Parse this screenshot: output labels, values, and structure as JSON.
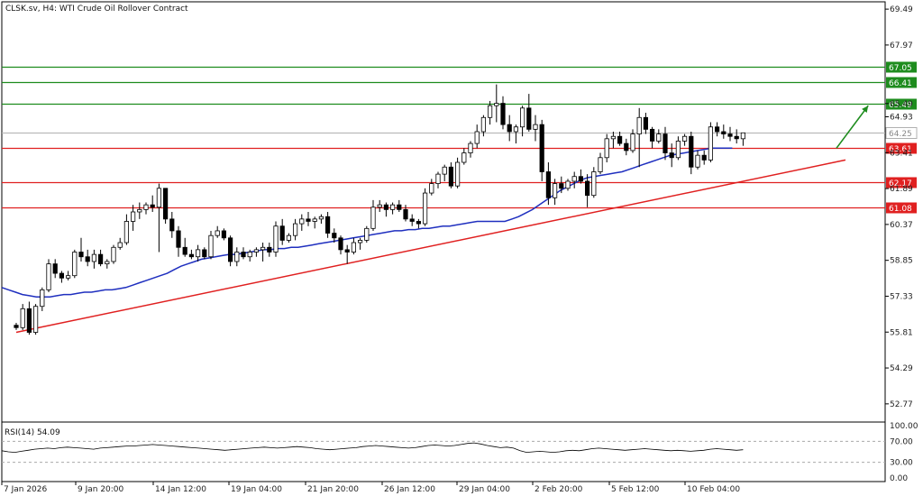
{
  "header": {
    "symbol_line": "CLSK.sv, H4:  WTI Crude Oil Rollover Contract"
  },
  "indicator": {
    "label": "RSI(14) 54.09",
    "levels": [
      "100.00",
      "70.00",
      "30.00",
      "0.00"
    ]
  },
  "colors": {
    "candle_up": "#ffffff",
    "candle_down": "#000000",
    "ma_line": "#1f2fbf",
    "support_lines": "#e02020",
    "resistance_lines": "#1e8c1e",
    "rsi_line": "#000000",
    "arrow": "#1e8c1e",
    "price_marker": "#b0b0b0"
  },
  "chart_data": {
    "type": "candlestick",
    "price_ticks": [
      "69.49",
      "67.97",
      "65.49",
      "64.93",
      "63.41",
      "61.89",
      "60.37",
      "58.85",
      "57.33",
      "55.81",
      "54.29",
      "52.77"
    ],
    "time_ticks": [
      "7 Jan 2026",
      "9 Jan 20:00",
      "14 Jan 12:00",
      "19 Jan 04:00",
      "21 Jan 20:00",
      "26 Jan 12:00",
      "29 Jan 04:00",
      "2 Feb 20:00",
      "5 Feb 12:00",
      "10 Feb 04:00"
    ],
    "ylim": [
      52.0,
      69.8
    ],
    "current_price": "64.25",
    "horizontal_levels": [
      {
        "label": "67.05",
        "value": 67.05,
        "kind": "resistance"
      },
      {
        "label": "66.41",
        "value": 66.41,
        "kind": "resistance"
      },
      {
        "label": "65.49",
        "value": 65.49,
        "kind": "resistance"
      },
      {
        "label": "63.61",
        "value": 63.61,
        "kind": "support"
      },
      {
        "label": "62.17",
        "value": 62.17,
        "kind": "support"
      },
      {
        "label": "61.08",
        "value": 61.08,
        "kind": "support"
      }
    ],
    "trendline": {
      "from": [
        0,
        55.8
      ],
      "to": [
        130,
        63.1
      ]
    },
    "arrow": {
      "from": [
        130,
        63.6
      ],
      "to": [
        136,
        65.4
      ]
    },
    "moving_average": [
      57.7,
      57.6,
      57.5,
      57.4,
      57.35,
      57.3,
      57.3,
      57.3,
      57.35,
      57.4,
      57.4,
      57.45,
      57.5,
      57.5,
      57.55,
      57.6,
      57.6,
      57.65,
      57.7,
      57.8,
      57.9,
      58.0,
      58.1,
      58.2,
      58.3,
      58.45,
      58.6,
      58.7,
      58.8,
      58.9,
      58.95,
      59.0,
      59.05,
      59.1,
      59.1,
      59.15,
      59.2,
      59.25,
      59.3,
      59.3,
      59.35,
      59.35,
      59.4,
      59.4,
      59.45,
      59.5,
      59.55,
      59.6,
      59.65,
      59.7,
      59.75,
      59.8,
      59.85,
      59.9,
      59.95,
      60.0,
      60.05,
      60.1,
      60.1,
      60.15,
      60.15,
      60.2,
      60.2,
      60.25,
      60.3,
      60.3,
      60.35,
      60.4,
      60.45,
      60.5,
      60.5,
      60.5,
      60.5,
      60.5,
      60.6,
      60.7,
      60.85,
      61.0,
      61.2,
      61.4,
      61.6,
      61.8,
      61.95,
      62.1,
      62.25,
      62.35,
      62.4,
      62.45,
      62.5,
      62.55,
      62.6,
      62.7,
      62.8,
      62.9,
      63.0,
      63.1,
      63.2,
      63.3,
      63.35,
      63.4,
      63.45,
      63.5,
      63.55,
      63.6,
      63.6,
      63.6,
      63.6
    ],
    "candles": [
      [
        56.1,
        56.2,
        55.9,
        56.0
      ],
      [
        56.0,
        57.0,
        55.9,
        56.8
      ],
      [
        56.8,
        57.1,
        55.7,
        55.8
      ],
      [
        55.8,
        57.0,
        55.7,
        56.9
      ],
      [
        56.9,
        57.7,
        56.7,
        57.6
      ],
      [
        57.6,
        58.9,
        57.5,
        58.7
      ],
      [
        58.7,
        58.9,
        58.1,
        58.3
      ],
      [
        58.3,
        58.4,
        57.9,
        58.1
      ],
      [
        58.1,
        58.4,
        58.0,
        58.2
      ],
      [
        58.2,
        59.3,
        58.1,
        59.2
      ],
      [
        59.2,
        59.8,
        58.8,
        59.0
      ],
      [
        59.0,
        59.3,
        58.6,
        58.8
      ],
      [
        58.8,
        59.3,
        58.5,
        59.1
      ],
      [
        59.1,
        59.3,
        58.6,
        58.7
      ],
      [
        58.7,
        58.9,
        58.5,
        58.8
      ],
      [
        58.8,
        59.5,
        58.7,
        59.4
      ],
      [
        59.4,
        59.8,
        59.3,
        59.6
      ],
      [
        59.6,
        60.8,
        59.5,
        60.5
      ],
      [
        60.5,
        61.2,
        60.1,
        60.9
      ],
      [
        60.9,
        61.3,
        60.6,
        61.0
      ],
      [
        61.0,
        61.3,
        60.8,
        61.2
      ],
      [
        61.2,
        61.6,
        60.9,
        61.1
      ],
      [
        61.1,
        62.1,
        59.2,
        61.9
      ],
      [
        61.9,
        61.9,
        60.4,
        60.6
      ],
      [
        60.6,
        60.9,
        59.8,
        60.1
      ],
      [
        60.1,
        60.3,
        59.0,
        59.4
      ],
      [
        59.4,
        59.8,
        59.0,
        59.1
      ],
      [
        59.1,
        59.3,
        58.9,
        59.0
      ],
      [
        59.0,
        59.5,
        58.8,
        59.3
      ],
      [
        59.3,
        59.4,
        58.9,
        59.0
      ],
      [
        59.0,
        60.1,
        58.9,
        59.9
      ],
      [
        59.9,
        60.3,
        59.8,
        60.1
      ],
      [
        60.1,
        60.2,
        59.7,
        59.8
      ],
      [
        59.8,
        59.9,
        58.6,
        58.8
      ],
      [
        58.8,
        59.4,
        58.6,
        59.2
      ],
      [
        59.2,
        59.4,
        58.9,
        59.0
      ],
      [
        59.0,
        59.3,
        58.8,
        59.2
      ],
      [
        59.2,
        59.4,
        59.0,
        59.3
      ],
      [
        59.3,
        59.6,
        58.8,
        59.4
      ],
      [
        59.4,
        59.6,
        59.0,
        59.2
      ],
      [
        59.2,
        60.5,
        59.0,
        60.3
      ],
      [
        60.3,
        60.6,
        59.5,
        59.7
      ],
      [
        59.7,
        60.0,
        59.6,
        59.9
      ],
      [
        59.9,
        60.6,
        59.7,
        60.4
      ],
      [
        60.4,
        60.8,
        60.1,
        60.6
      ],
      [
        60.6,
        60.9,
        60.3,
        60.5
      ],
      [
        60.5,
        60.7,
        60.2,
        60.6
      ],
      [
        60.6,
        60.8,
        60.4,
        60.7
      ],
      [
        60.7,
        60.9,
        59.8,
        60.0
      ],
      [
        60.0,
        60.2,
        59.6,
        59.8
      ],
      [
        59.8,
        59.9,
        59.1,
        59.3
      ],
      [
        59.3,
        59.5,
        58.7,
        59.2
      ],
      [
        59.2,
        59.8,
        59.1,
        59.6
      ],
      [
        59.6,
        59.8,
        59.3,
        59.7
      ],
      [
        59.7,
        60.3,
        59.6,
        60.2
      ],
      [
        60.2,
        61.4,
        60.1,
        61.1
      ],
      [
        61.1,
        61.4,
        60.9,
        61.2
      ],
      [
        61.2,
        61.3,
        60.7,
        61.0
      ],
      [
        61.0,
        61.3,
        60.8,
        61.2
      ],
      [
        61.2,
        61.4,
        60.9,
        61.0
      ],
      [
        61.0,
        61.2,
        60.5,
        60.6
      ],
      [
        60.6,
        60.8,
        60.3,
        60.5
      ],
      [
        60.5,
        60.6,
        60.2,
        60.4
      ],
      [
        60.4,
        61.9,
        60.3,
        61.7
      ],
      [
        61.7,
        62.3,
        61.6,
        62.1
      ],
      [
        62.1,
        62.6,
        61.9,
        62.5
      ],
      [
        62.5,
        62.9,
        62.2,
        62.8
      ],
      [
        62.8,
        63.0,
        61.9,
        62.0
      ],
      [
        62.0,
        63.2,
        61.9,
        63.0
      ],
      [
        63.0,
        63.6,
        62.9,
        63.4
      ],
      [
        63.4,
        63.9,
        63.2,
        63.8
      ],
      [
        63.8,
        64.6,
        63.6,
        64.3
      ],
      [
        64.3,
        65.0,
        64.1,
        64.9
      ],
      [
        64.9,
        65.6,
        64.6,
        65.4
      ],
      [
        65.4,
        66.3,
        64.7,
        65.5
      ],
      [
        65.5,
        65.8,
        64.4,
        64.6
      ],
      [
        64.6,
        65.0,
        63.9,
        64.3
      ],
      [
        64.3,
        64.6,
        63.8,
        64.5
      ],
      [
        64.5,
        65.4,
        64.1,
        65.3
      ],
      [
        65.3,
        65.9,
        64.3,
        64.4
      ],
      [
        64.4,
        65.0,
        63.9,
        64.6
      ],
      [
        64.6,
        64.8,
        62.2,
        62.6
      ],
      [
        62.6,
        63.0,
        61.2,
        61.5
      ],
      [
        61.5,
        62.3,
        61.2,
        62.1
      ],
      [
        62.1,
        62.4,
        61.7,
        61.9
      ],
      [
        61.9,
        62.3,
        61.8,
        62.2
      ],
      [
        62.2,
        62.6,
        61.9,
        62.4
      ],
      [
        62.4,
        62.7,
        62.1,
        62.2
      ],
      [
        62.2,
        62.5,
        61.1,
        61.6
      ],
      [
        61.6,
        62.8,
        61.5,
        62.6
      ],
      [
        62.6,
        63.4,
        62.5,
        63.2
      ],
      [
        63.2,
        64.2,
        63.0,
        64.0
      ],
      [
        64.0,
        64.3,
        63.6,
        64.1
      ],
      [
        64.1,
        64.3,
        63.7,
        63.8
      ],
      [
        63.8,
        64.0,
        63.3,
        63.5
      ],
      [
        63.5,
        64.4,
        63.4,
        64.2
      ],
      [
        64.2,
        65.3,
        62.8,
        64.9
      ],
      [
        64.9,
        65.1,
        64.2,
        64.4
      ],
      [
        64.4,
        64.5,
        63.6,
        63.9
      ],
      [
        63.9,
        64.4,
        63.8,
        64.2
      ],
      [
        64.2,
        64.5,
        63.1,
        63.4
      ],
      [
        63.4,
        63.8,
        62.8,
        63.2
      ],
      [
        63.2,
        64.1,
        63.1,
        63.9
      ],
      [
        63.9,
        64.2,
        63.7,
        64.1
      ],
      [
        64.1,
        64.3,
        62.5,
        62.8
      ],
      [
        62.8,
        63.5,
        62.7,
        63.3
      ],
      [
        63.3,
        63.5,
        62.9,
        63.1
      ],
      [
        63.1,
        64.7,
        63.0,
        64.5
      ],
      [
        64.5,
        64.7,
        64.1,
        64.3
      ],
      [
        64.3,
        64.6,
        64.0,
        64.2
      ],
      [
        64.2,
        64.5,
        63.9,
        64.1
      ],
      [
        64.1,
        64.4,
        63.8,
        64.0
      ],
      [
        64.0,
        64.2,
        63.7,
        64.25
      ]
    ],
    "rsi_values": [
      52,
      50,
      49,
      51,
      53,
      55,
      56,
      57,
      56,
      58,
      59,
      58,
      57,
      56,
      55,
      57,
      58,
      59,
      60,
      61,
      61,
      62,
      63,
      64,
      63,
      62,
      61,
      60,
      59,
      58,
      57,
      56,
      55,
      54,
      53,
      54,
      55,
      56,
      57,
      58,
      59,
      58,
      57,
      58,
      59,
      60,
      59,
      58,
      56,
      55,
      54,
      55,
      56,
      57,
      58,
      60,
      61,
      62,
      61,
      60,
      59,
      58,
      57,
      58,
      60,
      62,
      63,
      62,
      61,
      62,
      64,
      66,
      67,
      65,
      62,
      60,
      58,
      59,
      57,
      52,
      49,
      50,
      51,
      50,
      49,
      50,
      52,
      53,
      52,
      54,
      56,
      57,
      56,
      55,
      54,
      53,
      54,
      55,
      56,
      55,
      54,
      53,
      52,
      53,
      52,
      51,
      52,
      53,
      55,
      56,
      55,
      54,
      53,
      54
    ]
  }
}
